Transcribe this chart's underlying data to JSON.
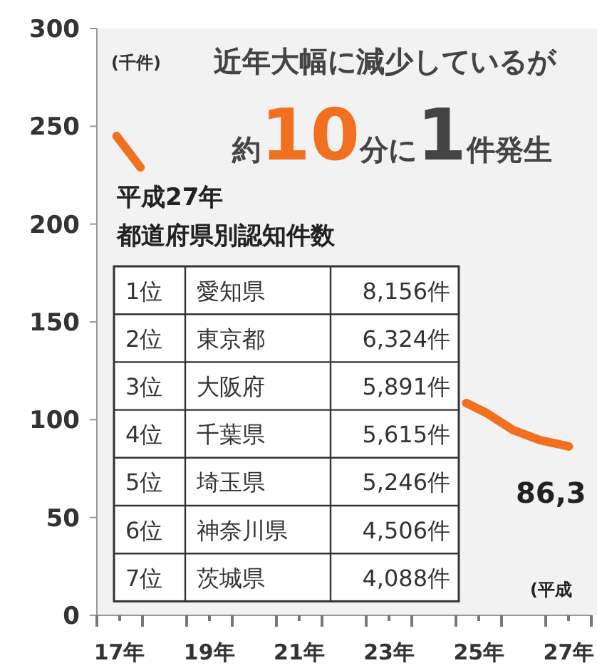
{
  "chart_data": {
    "type": "line",
    "title": "近年大幅に減少しているが",
    "subtitle": "約10分に1件発生",
    "ylabel": "(千件)",
    "xlim": [
      16.5,
      27.5
    ],
    "xticks": [
      {
        "value": 16.5,
        "label": null
      },
      {
        "value": 17,
        "label": "17年"
      },
      {
        "value": 17.5,
        "label": null
      },
      {
        "value": 18.5,
        "label": null
      },
      {
        "value": 19,
        "label": "19年"
      },
      {
        "value": 19.5,
        "label": null
      },
      {
        "value": 20.5,
        "label": null
      },
      {
        "value": 21,
        "label": "21年"
      },
      {
        "value": 21.5,
        "label": null
      },
      {
        "value": 22.5,
        "label": null
      },
      {
        "value": 23,
        "label": "23年"
      },
      {
        "value": 23.5,
        "label": null
      },
      {
        "value": 24.5,
        "label": null
      },
      {
        "value": 25,
        "label": "25年"
      },
      {
        "value": 25.5,
        "label": null
      },
      {
        "value": 26.5,
        "label": null
      },
      {
        "value": 27,
        "label": "27年"
      },
      {
        "value": 27.5,
        "label": null
      }
    ],
    "ylim": [
      0,
      300
    ],
    "yticks": [
      0,
      50,
      100,
      150,
      200,
      250,
      300
    ],
    "grid": false,
    "series": [
      {
        "color": "#f07020",
        "x": [
          16.94,
          17.47
        ],
        "values": [
          245,
          229
        ]
      },
      {
        "color": "#f07020",
        "x": [
          24.72,
          25.17,
          25.76,
          26.35,
          27
        ],
        "values": [
          108.5,
          103.4,
          94.7,
          89.6,
          86.3
        ]
      }
    ],
    "annotations": [
      "平成27年",
      "都道府県別認知件数",
      "1位",
      "愛知県",
      "8,156件",
      "2位",
      "東京都",
      "6,324件",
      "3位",
      "大阪府",
      "5,891件",
      "4位",
      "千葉県",
      "5,615件",
      "5位",
      "埼玉県",
      "5,246件",
      "6位",
      "神奈川県",
      "4,506件",
      "7位",
      "茨城県",
      "4,088件",
      "86,3",
      "(平成"
    ]
  }
}
